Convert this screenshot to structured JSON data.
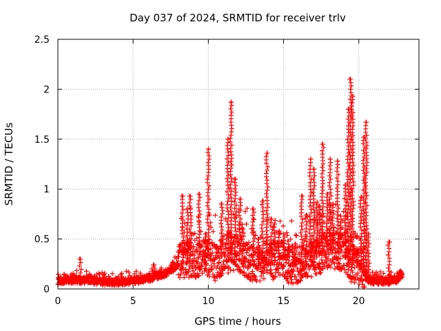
{
  "chart_data": {
    "type": "scatter",
    "title": "Day 037 of 2024, SRMTID for receiver trlv",
    "xlabel": "GPS time / hours",
    "ylabel": "SRMTID / TECUs",
    "xlim": [
      0,
      24
    ],
    "ylim": [
      0,
      2.5
    ],
    "x_ticks": [
      0,
      5,
      10,
      15,
      20
    ],
    "y_ticks": [
      0,
      0.5,
      1,
      1.5,
      2,
      2.5
    ],
    "x_tick_labels": [
      "0",
      "5",
      "10",
      "15",
      "20"
    ],
    "y_tick_labels": [
      "0",
      "0.5",
      "1",
      "1.5",
      "2",
      "2.5"
    ],
    "grid": true,
    "marker": "+",
    "series": [
      {
        "name": "SRMTID",
        "color": "#ff0000",
        "baseline": [
          [
            0,
            0.08
          ],
          [
            1,
            0.09
          ],
          [
            2,
            0.09
          ],
          [
            3,
            0.07
          ],
          [
            4,
            0.07
          ],
          [
            5,
            0.08
          ],
          [
            6,
            0.1
          ],
          [
            6.8,
            0.14
          ],
          [
            7.5,
            0.18
          ],
          [
            8,
            0.25
          ],
          [
            8.5,
            0.3
          ],
          [
            9,
            0.3
          ],
          [
            10,
            0.33
          ],
          [
            10.5,
            0.25
          ],
          [
            11,
            0.35
          ],
          [
            12,
            0.35
          ],
          [
            12.5,
            0.3
          ],
          [
            13,
            0.25
          ],
          [
            14,
            0.28
          ],
          [
            15,
            0.3
          ],
          [
            15.5,
            0.22
          ],
          [
            16,
            0.25
          ],
          [
            17,
            0.3
          ],
          [
            18,
            0.4
          ],
          [
            19,
            0.35
          ],
          [
            19.5,
            0.25
          ],
          [
            20.2,
            0.22
          ],
          [
            20.5,
            0.1
          ],
          [
            21,
            0.08
          ],
          [
            22,
            0.08
          ],
          [
            22.5,
            0.09
          ],
          [
            22.9,
            0.15
          ]
        ],
        "peaks": [
          [
            1.5,
            0.3
          ],
          [
            6.4,
            0.24
          ],
          [
            8.3,
            0.93
          ],
          [
            8.6,
            0.8
          ],
          [
            8.8,
            0.93
          ],
          [
            9.4,
            0.95
          ],
          [
            9.8,
            0.55
          ],
          [
            10.0,
            1.4
          ],
          [
            10.9,
            0.85
          ],
          [
            11.3,
            1.5
          ],
          [
            11.5,
            1.87
          ],
          [
            11.8,
            1.1
          ],
          [
            12.1,
            0.9
          ],
          [
            12.3,
            0.6
          ],
          [
            13.0,
            0.8
          ],
          [
            13.3,
            0.5
          ],
          [
            13.6,
            0.88
          ],
          [
            13.9,
            1.36
          ],
          [
            14.2,
            0.7
          ],
          [
            14.4,
            0.65
          ],
          [
            14.7,
            0.58
          ],
          [
            15.0,
            0.55
          ],
          [
            15.3,
            0.48
          ],
          [
            15.6,
            0.43
          ],
          [
            15.8,
            0.45
          ],
          [
            16.2,
            0.93
          ],
          [
            16.5,
            0.74
          ],
          [
            16.8,
            1.3
          ],
          [
            17.0,
            1.2
          ],
          [
            17.2,
            0.85
          ],
          [
            17.4,
            0.83
          ],
          [
            17.6,
            1.45
          ],
          [
            17.9,
            0.95
          ],
          [
            18.1,
            1.3
          ],
          [
            18.3,
            0.85
          ],
          [
            18.6,
            1.28
          ],
          [
            18.8,
            0.73
          ],
          [
            19.1,
            1.04
          ],
          [
            19.3,
            1.8
          ],
          [
            19.45,
            2.1
          ],
          [
            19.6,
            1.93
          ],
          [
            19.9,
            0.4
          ],
          [
            20.15,
            0.92
          ],
          [
            20.35,
            1.52
          ],
          [
            20.5,
            1.67
          ],
          [
            20.65,
            0.55
          ],
          [
            22.0,
            0.47
          ],
          [
            22.7,
            0.17
          ]
        ]
      }
    ]
  }
}
